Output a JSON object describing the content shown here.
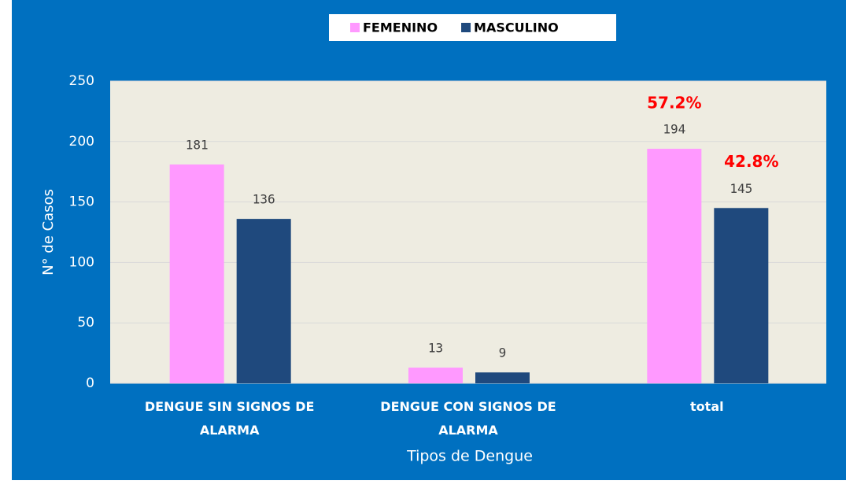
{
  "chart_data": {
    "type": "bar",
    "x_label": "Tipos de Dengue",
    "y_label": "N° de Casos",
    "categories": [
      "DENGUE SIN SIGNOS DE ALARMA",
      "DENGUE CON SIGNOS DE ALARMA",
      "total"
    ],
    "series": [
      {
        "name": "FEMENINO",
        "color": "#ff99ff",
        "values": [
          181,
          13,
          194
        ]
      },
      {
        "name": "MASCULINO",
        "color": "#1f497d",
        "values": [
          136,
          9,
          145
        ]
      }
    ],
    "annotations": [
      "57.2%",
      "42.8%"
    ],
    "ylim": [
      0,
      250
    ],
    "yticks": [
      0,
      50,
      100,
      150,
      200,
      250
    ],
    "grid": true,
    "legend": "top"
  }
}
